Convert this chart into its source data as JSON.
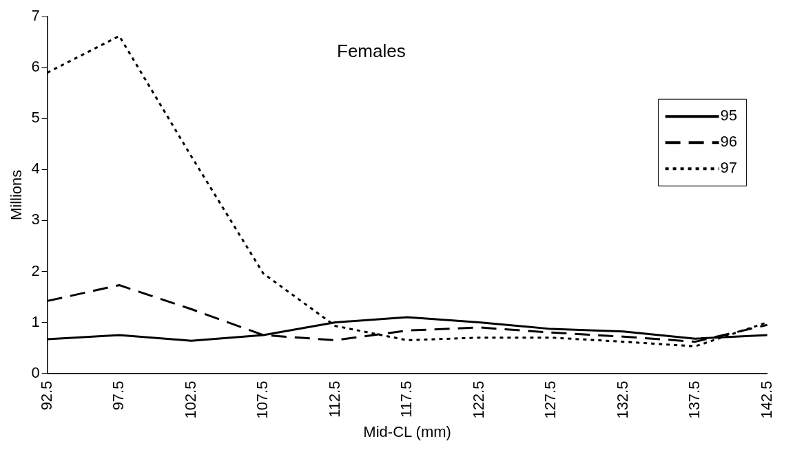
{
  "chart_data": {
    "type": "line",
    "title": "Females",
    "xlabel": "Mid-CL (mm)",
    "ylabel": "Millions",
    "categories": [
      "92.5",
      "97.5",
      "102.5",
      "107.5",
      "112.5",
      "117.5",
      "122.5",
      "127.5",
      "132.5",
      "137.5",
      "142.5"
    ],
    "ylim": [
      0,
      7
    ],
    "yticks": [
      0,
      1,
      2,
      3,
      4,
      5,
      6,
      7
    ],
    "grid": false,
    "legend": "top right",
    "marker": "none",
    "series": [
      {
        "name": "95",
        "color": "#000000",
        "line_style": "solid",
        "values": [
          0.67,
          0.75,
          0.64,
          0.75,
          1.0,
          1.1,
          1.0,
          0.87,
          0.82,
          0.68,
          0.75
        ]
      },
      {
        "name": "96",
        "color": "#000000",
        "line_style": "dashed",
        "values": [
          1.42,
          1.73,
          1.26,
          0.75,
          0.65,
          0.84,
          0.9,
          0.8,
          0.72,
          0.62,
          0.95
        ]
      },
      {
        "name": "97",
        "color": "#000000",
        "line_style": "dotted",
        "values": [
          5.9,
          6.62,
          4.26,
          1.96,
          0.93,
          0.65,
          0.7,
          0.7,
          0.62,
          0.53,
          1.0
        ]
      }
    ]
  }
}
